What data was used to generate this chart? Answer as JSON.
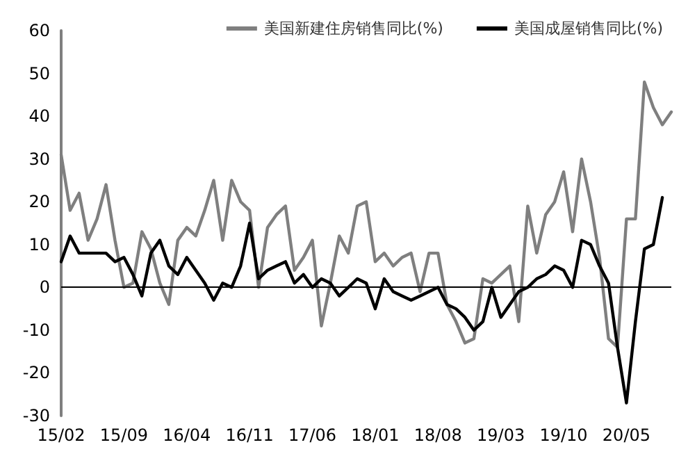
{
  "chart_data": {
    "type": "line",
    "categories": [
      "15/02",
      null,
      null,
      null,
      null,
      null,
      null,
      "15/09",
      null,
      null,
      null,
      null,
      null,
      null,
      "16/04",
      null,
      null,
      null,
      null,
      null,
      null,
      "16/11",
      null,
      null,
      null,
      null,
      null,
      null,
      "17/06",
      null,
      null,
      null,
      null,
      null,
      null,
      "18/01",
      null,
      null,
      null,
      null,
      null,
      null,
      "18/08",
      null,
      null,
      null,
      null,
      null,
      null,
      "19/03",
      null,
      null,
      null,
      null,
      null,
      null,
      "19/10",
      null,
      null,
      null,
      null,
      null,
      null,
      "20/05",
      null,
      null,
      null,
      null,
      null
    ],
    "series": [
      {
        "name": "美国新建住房销售同比(%)",
        "color": "#7f7f7f",
        "values": [
          31,
          18,
          22,
          11,
          16,
          24,
          11,
          0,
          1,
          13,
          9,
          1,
          -4,
          11,
          14,
          12,
          18,
          25,
          11,
          25,
          20,
          18,
          0,
          14,
          17,
          19,
          4,
          7,
          11,
          -9,
          1,
          12,
          8,
          19,
          20,
          6,
          8,
          5,
          7,
          8,
          -1,
          8,
          8,
          -4,
          -8,
          -13,
          -12,
          2,
          1,
          3,
          5,
          -8,
          19,
          8,
          17,
          20,
          27,
          13,
          30,
          20,
          7,
          -12,
          -14,
          16,
          16,
          48,
          42,
          38,
          41
        ]
      },
      {
        "name": "美国成屋销售同比(%)",
        "color": "#000000",
        "values": [
          6,
          12,
          8,
          8,
          8,
          8,
          6,
          7,
          3,
          -2,
          8,
          11,
          5,
          3,
          7,
          4,
          1,
          -3,
          1,
          0,
          5,
          15,
          2,
          4,
          5,
          6,
          1,
          3,
          0,
          2,
          1,
          -2,
          0,
          2,
          1,
          -5,
          2,
          -1,
          -2,
          -3,
          -2,
          -1,
          0,
          -4,
          -5,
          -7,
          -10,
          -8,
          0,
          -7,
          -4,
          -1,
          0,
          2,
          3,
          5,
          4,
          0,
          11,
          10,
          5,
          1,
          -14,
          -27,
          -8,
          9,
          10,
          21,
          null
        ]
      }
    ],
    "ylim": [
      -30,
      60
    ],
    "yticks": [
      -30,
      -20,
      -10,
      0,
      10,
      20,
      30,
      40,
      50,
      60
    ],
    "grid": false,
    "ref_lines": [
      {
        "axis": "y",
        "value": 0,
        "color": "#000000",
        "line_style": "solid"
      }
    ],
    "legend": "top right",
    "marker": "none",
    "line_style": "solid"
  }
}
